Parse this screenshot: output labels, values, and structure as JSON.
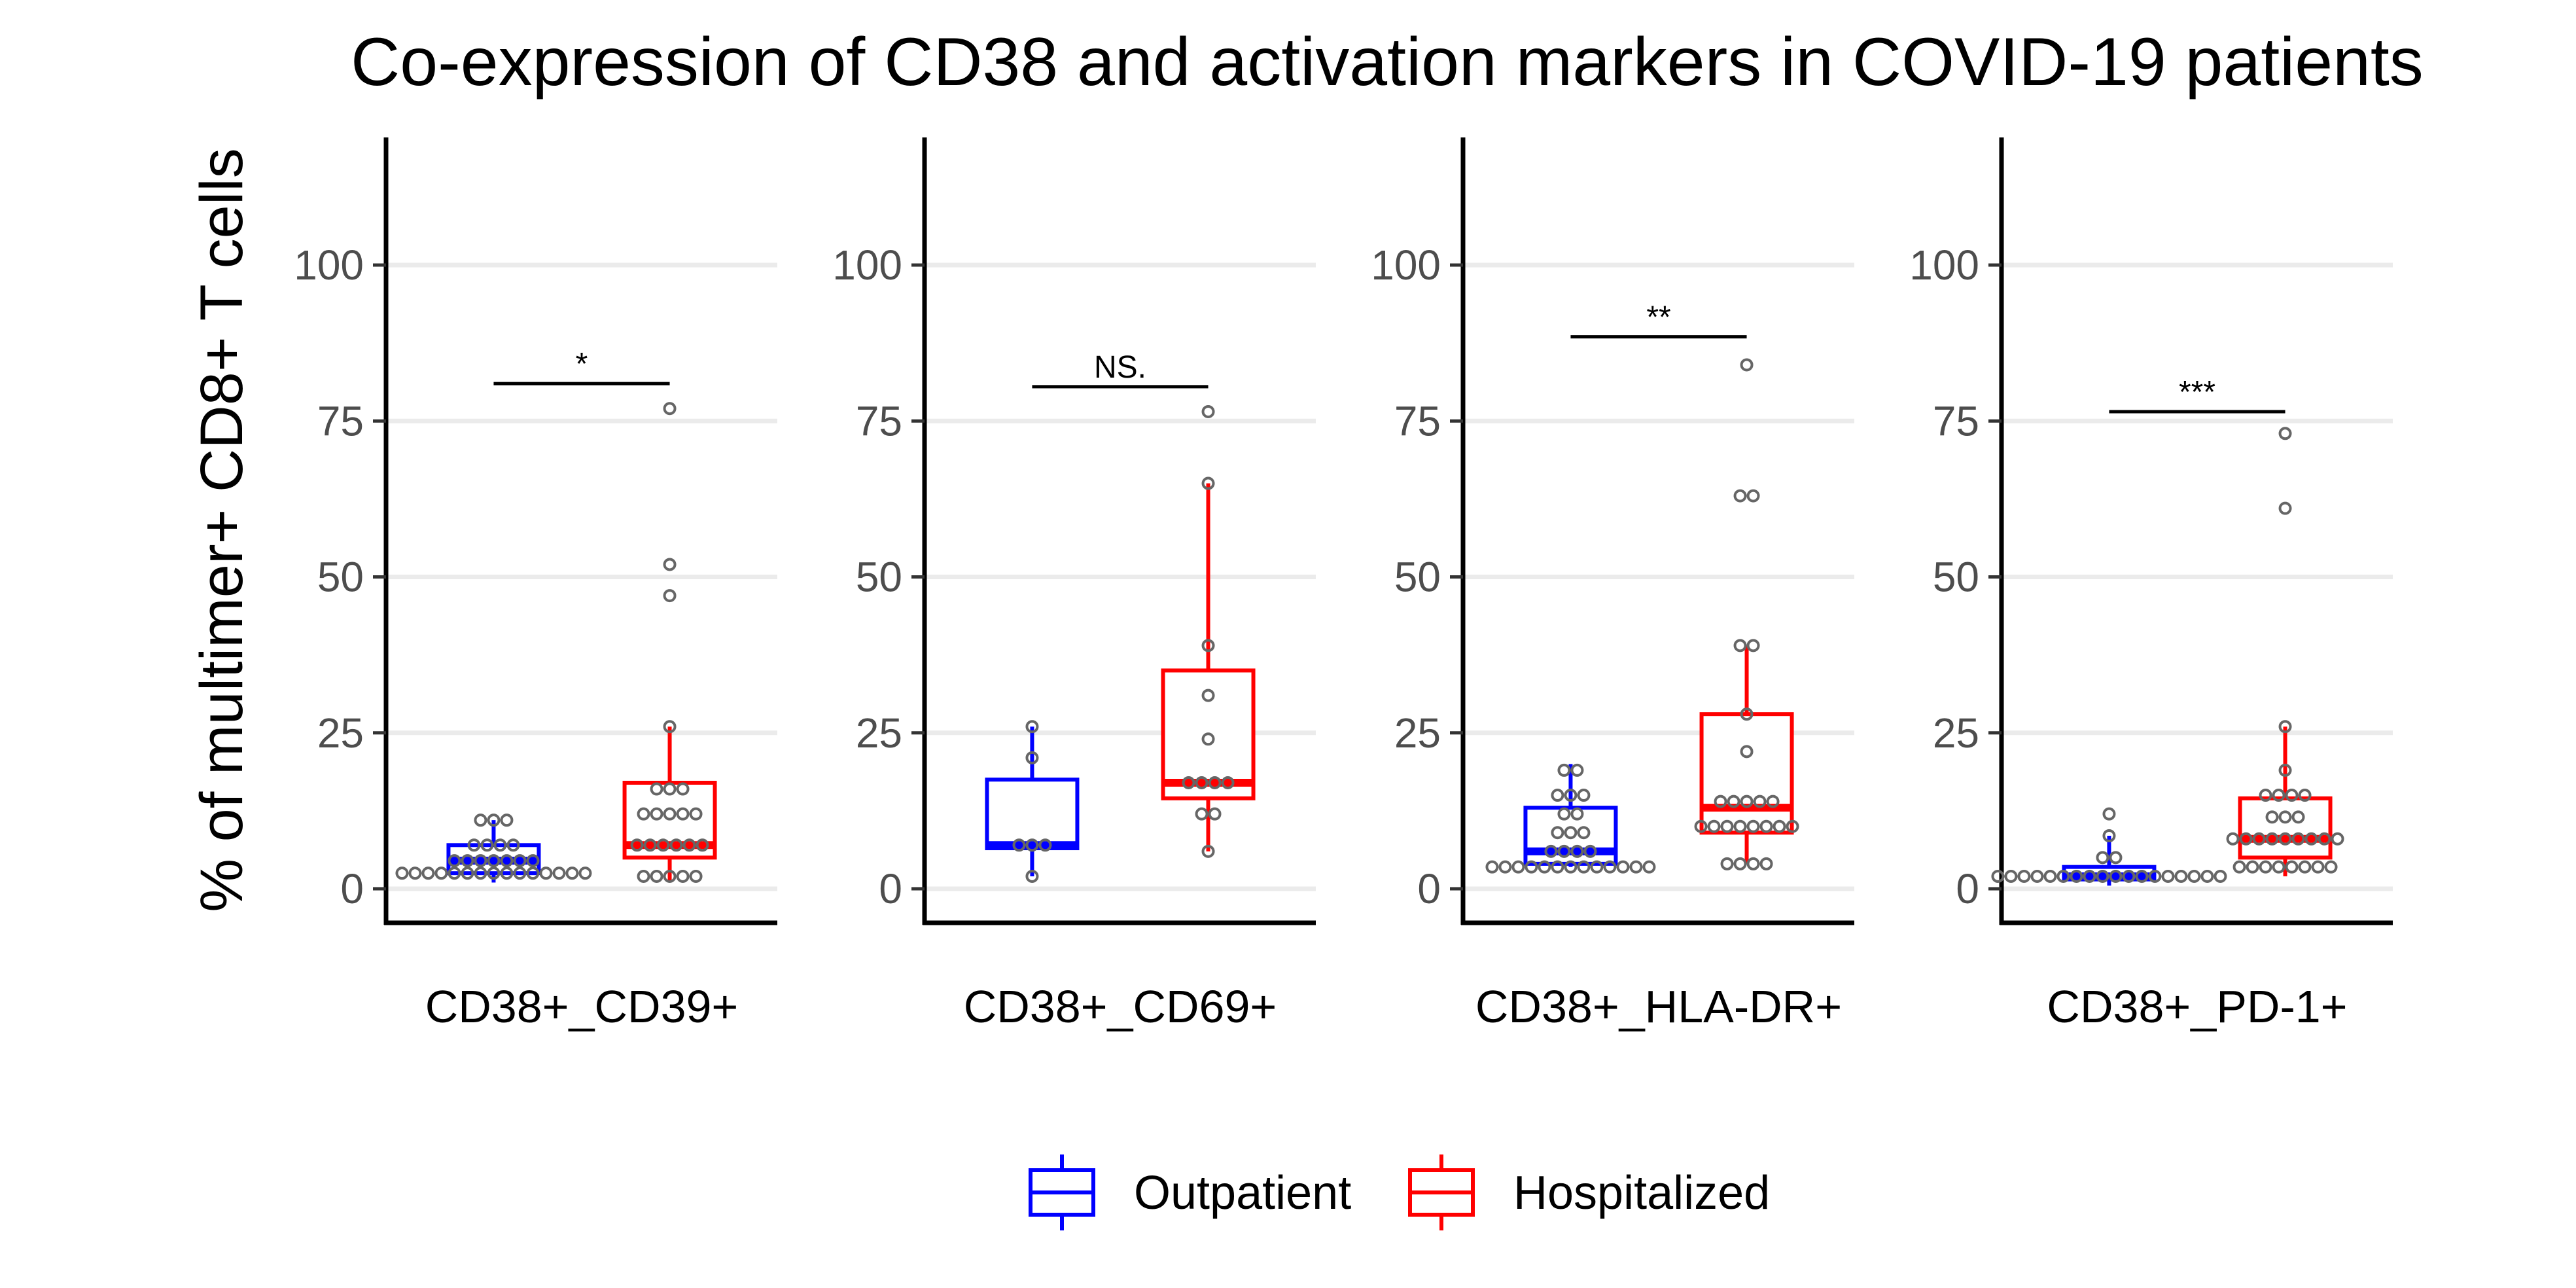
{
  "chart_data": {
    "type": "box",
    "title": "Co-expression of CD38 and activation markers in COVID-19 patients",
    "ylabel": "% of multimer+ CD8+ T cells",
    "xlabel": "",
    "ylim": [
      -5,
      120
    ],
    "yticks": [
      0,
      25,
      50,
      75,
      100
    ],
    "grid": "horizontal",
    "legend": {
      "position": "bottom",
      "entries": [
        {
          "name": "Outpatient",
          "color": "#0000ff"
        },
        {
          "name": "Hospitalized",
          "color": "#ff0000"
        }
      ]
    },
    "point_color": "#666666",
    "panels": [
      {
        "category": "CD38+_CD39+",
        "significance": {
          "label": "*",
          "y": 81
        },
        "groups": [
          {
            "name": "Outpatient",
            "color": "#0000ff",
            "box": {
              "min": 1,
              "q1": 2.5,
              "median": 4.5,
              "q3": 7,
              "max": 11
            },
            "points": [
              2.5,
              2.5,
              2.5,
              2.5,
              2.5,
              2.5,
              2.5,
              2.5,
              2.5,
              2.5,
              2.5,
              2.5,
              2.5,
              2.5,
              2.5,
              4.5,
              4.5,
              4.5,
              4.5,
              4.5,
              4.5,
              4.5,
              7,
              7,
              7,
              7,
              11,
              11,
              11
            ]
          },
          {
            "name": "Hospitalized",
            "color": "#ff0000",
            "box": {
              "min": 1,
              "q1": 5,
              "median": 7,
              "q3": 17,
              "max": 26
            },
            "points": [
              2,
              2,
              2,
              2,
              2,
              7,
              7,
              7,
              7,
              7,
              7,
              12,
              12,
              12,
              12,
              12,
              16,
              16,
              16,
              26,
              47,
              52,
              77
            ]
          }
        ]
      },
      {
        "category": "CD38+_CD69+",
        "significance": {
          "label": "NS.",
          "y": 80.5
        },
        "groups": [
          {
            "name": "Outpatient",
            "color": "#0000ff",
            "box": {
              "min": 2,
              "q1": 6.5,
              "median": 7,
              "q3": 17.5,
              "max": 26
            },
            "points": [
              2,
              7,
              7,
              7,
              21,
              26
            ]
          },
          {
            "name": "Hospitalized",
            "color": "#ff0000",
            "box": {
              "min": 6,
              "q1": 14.5,
              "median": 17,
              "q3": 35,
              "max": 65
            },
            "points": [
              6,
              12,
              12,
              17,
              17,
              17,
              17,
              24,
              31,
              39,
              65,
              76.5
            ]
          }
        ]
      },
      {
        "category": "CD38+_HLA-DR+",
        "significance": {
          "label": "**",
          "y": 88.5
        },
        "groups": [
          {
            "name": "Outpatient",
            "color": "#0000ff",
            "box": {
              "min": 3.5,
              "q1": 4,
              "median": 6,
              "q3": 13,
              "max": 20
            },
            "points": [
              3.5,
              3.5,
              3.5,
              3.5,
              3.5,
              3.5,
              3.5,
              3.5,
              3.5,
              3.5,
              3.5,
              3.5,
              3.5,
              6,
              6,
              6,
              6,
              9,
              9,
              9,
              12,
              12,
              15,
              15,
              15,
              19,
              19
            ]
          },
          {
            "name": "Hospitalized",
            "color": "#ff0000",
            "box": {
              "min": 4,
              "q1": 9,
              "median": 13,
              "q3": 28,
              "max": 39
            },
            "points": [
              4,
              4,
              4,
              4,
              10,
              10,
              10,
              10,
              10,
              10,
              10,
              10,
              14,
              14,
              14,
              14,
              14,
              22,
              28,
              39,
              39,
              63,
              63,
              84
            ]
          }
        ]
      },
      {
        "category": "CD38+_PD-1+",
        "significance": {
          "label": "***",
          "y": 76.5
        },
        "groups": [
          {
            "name": "Outpatient",
            "color": "#0000ff",
            "box": {
              "min": 0.5,
              "q1": 1.5,
              "median": 2,
              "q3": 3.5,
              "max": 8.5
            },
            "points": [
              2,
              2,
              2,
              2,
              2,
              2,
              2,
              2,
              2,
              2,
              2,
              2,
              2,
              2,
              2,
              2,
              2,
              2,
              5,
              5,
              8.5,
              12
            ]
          },
          {
            "name": "Hospitalized",
            "color": "#ff0000",
            "box": {
              "min": 2,
              "q1": 5,
              "median": 8,
              "q3": 14.5,
              "max": 26
            },
            "points": [
              3.5,
              3.5,
              3.5,
              3.5,
              3.5,
              3.5,
              3.5,
              3.5,
              8,
              8,
              8,
              8,
              8,
              8,
              8,
              8,
              8,
              11.5,
              11.5,
              11.5,
              15,
              15,
              15,
              15,
              19,
              26,
              61,
              73
            ]
          }
        ]
      }
    ]
  }
}
